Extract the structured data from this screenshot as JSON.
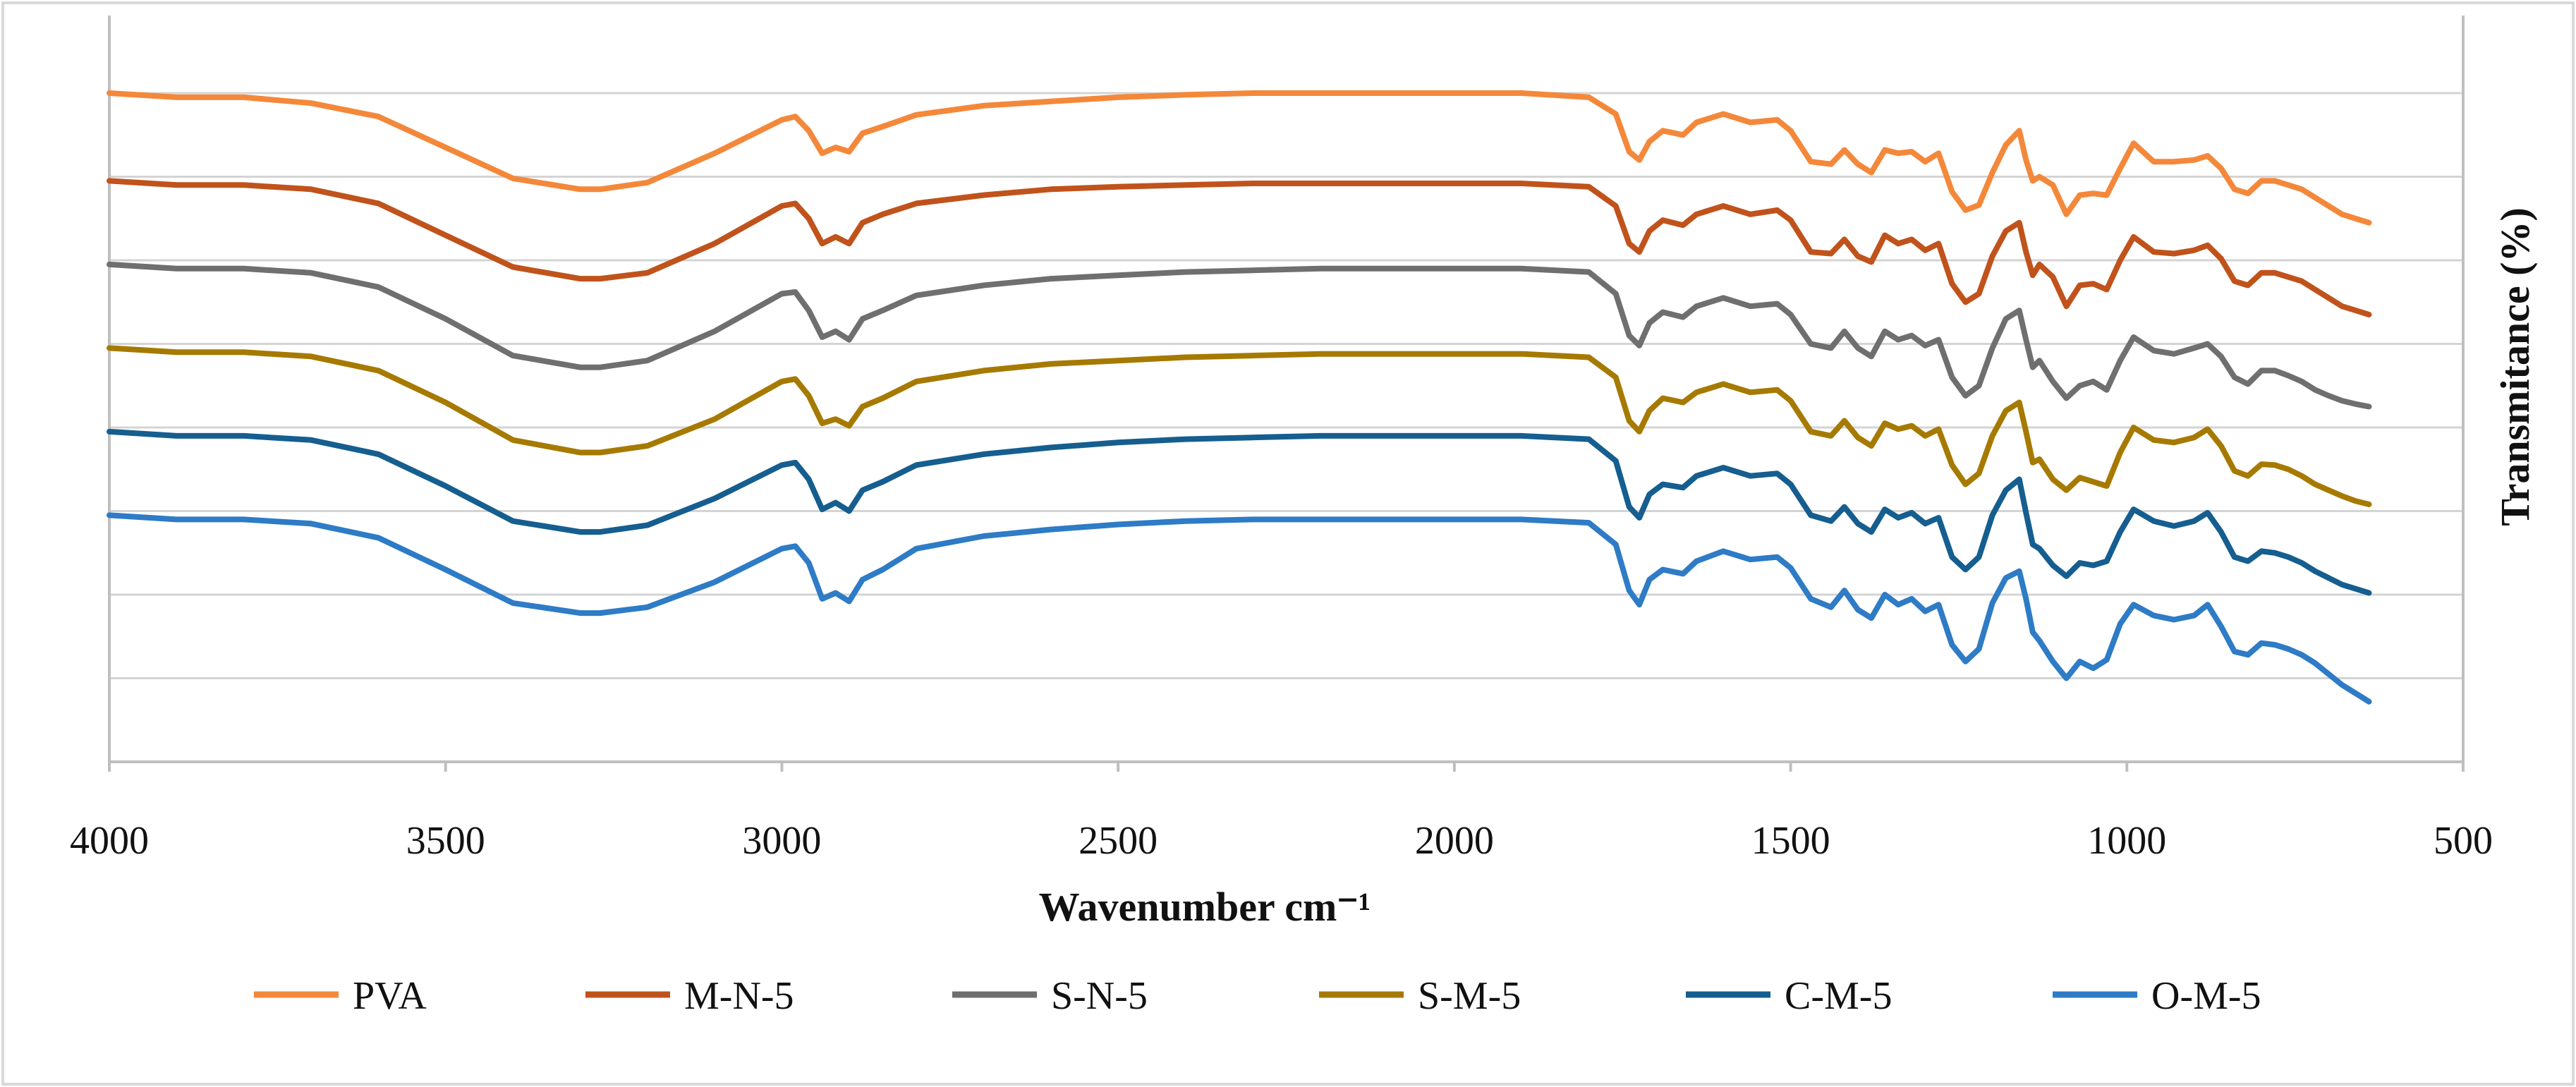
{
  "chart_data": {
    "type": "line",
    "title": "",
    "xlabel": "Wavenumber cm⁻¹",
    "ylabel": "Transmitance (%)",
    "xlim": [
      4000,
      500
    ],
    "x_reversed": true,
    "x_ticks": [
      4000,
      3500,
      3000,
      2500,
      2000,
      1500,
      1000,
      500
    ],
    "x_tick_labels": [
      "4000",
      "3500",
      "3000",
      "2500",
      "2000",
      "1500",
      "1000",
      "500"
    ],
    "ylim": [
      0,
      8
    ],
    "y_gridlines": [
      1,
      2,
      3,
      4,
      5,
      6,
      7,
      8
    ],
    "y_tick_labels_shown": false,
    "grid": true,
    "legend_position": "bottom",
    "x_common": [
      4000,
      3900,
      3800,
      3700,
      3600,
      3500,
      3400,
      3300,
      3270,
      3200,
      3100,
      3000,
      2980,
      2960,
      2940,
      2920,
      2900,
      2880,
      2850,
      2800,
      2700,
      2600,
      2500,
      2400,
      2300,
      2200,
      2100,
      2000,
      1900,
      1800,
      1760,
      1740,
      1725,
      1710,
      1690,
      1660,
      1640,
      1600,
      1560,
      1520,
      1500,
      1470,
      1440,
      1420,
      1400,
      1380,
      1360,
      1340,
      1320,
      1300,
      1280,
      1260,
      1240,
      1220,
      1200,
      1180,
      1160,
      1150,
      1140,
      1130,
      1110,
      1090,
      1070,
      1050,
      1030,
      1010,
      990,
      960,
      930,
      900,
      880,
      860,
      840,
      820,
      800,
      780,
      760,
      740,
      720,
      700,
      680,
      660,
      640
    ],
    "series": [
      {
        "name": "PVA",
        "color": "#F4883A",
        "values": [
          8.0,
          7.95,
          7.95,
          7.88,
          7.72,
          7.35,
          6.98,
          6.85,
          6.85,
          6.93,
          7.28,
          7.68,
          7.72,
          7.55,
          7.28,
          7.35,
          7.3,
          7.52,
          7.6,
          7.74,
          7.85,
          7.9,
          7.95,
          7.98,
          8.0,
          8.0,
          8.0,
          8.0,
          8.0,
          7.95,
          7.75,
          7.3,
          7.2,
          7.42,
          7.55,
          7.5,
          7.65,
          7.75,
          7.65,
          7.68,
          7.55,
          7.18,
          7.15,
          7.32,
          7.15,
          7.05,
          7.32,
          7.28,
          7.3,
          7.18,
          7.28,
          6.82,
          6.6,
          6.66,
          7.05,
          7.38,
          7.55,
          7.2,
          6.95,
          7.0,
          6.9,
          6.55,
          6.78,
          6.8,
          6.78,
          7.1,
          7.4,
          7.18,
          7.18,
          7.2,
          7.25,
          7.1,
          6.85,
          6.8,
          6.95,
          6.95,
          6.9,
          6.85,
          6.75,
          6.65,
          6.55,
          6.5,
          6.45
        ]
      },
      {
        "name": "M-N-5",
        "color": "#C0531B",
        "values": [
          6.95,
          6.9,
          6.9,
          6.85,
          6.68,
          6.3,
          5.92,
          5.78,
          5.78,
          5.85,
          6.2,
          6.65,
          6.68,
          6.5,
          6.2,
          6.28,
          6.2,
          6.45,
          6.55,
          6.68,
          6.78,
          6.85,
          6.88,
          6.9,
          6.92,
          6.92,
          6.92,
          6.92,
          6.92,
          6.88,
          6.65,
          6.2,
          6.1,
          6.35,
          6.48,
          6.42,
          6.55,
          6.65,
          6.55,
          6.6,
          6.48,
          6.1,
          6.08,
          6.25,
          6.05,
          5.98,
          6.3,
          6.2,
          6.25,
          6.12,
          6.2,
          5.72,
          5.5,
          5.6,
          6.05,
          6.35,
          6.45,
          6.1,
          5.82,
          5.95,
          5.8,
          5.45,
          5.7,
          5.72,
          5.65,
          6.0,
          6.28,
          6.1,
          6.08,
          6.12,
          6.18,
          6.02,
          5.75,
          5.7,
          5.85,
          5.85,
          5.8,
          5.75,
          5.65,
          5.55,
          5.45,
          5.4,
          5.35
        ]
      },
      {
        "name": "S-N-5",
        "color": "#6F6F6F",
        "values": [
          5.95,
          5.9,
          5.9,
          5.85,
          5.68,
          5.3,
          4.86,
          4.72,
          4.72,
          4.8,
          5.15,
          5.6,
          5.62,
          5.4,
          5.08,
          5.15,
          5.05,
          5.3,
          5.4,
          5.58,
          5.7,
          5.78,
          5.82,
          5.86,
          5.88,
          5.9,
          5.9,
          5.9,
          5.9,
          5.86,
          5.6,
          5.1,
          4.98,
          5.25,
          5.38,
          5.32,
          5.45,
          5.55,
          5.45,
          5.48,
          5.35,
          5.0,
          4.95,
          5.15,
          4.95,
          4.85,
          5.15,
          5.05,
          5.1,
          4.98,
          5.05,
          4.6,
          4.38,
          4.5,
          4.95,
          5.3,
          5.4,
          5.05,
          4.72,
          4.8,
          4.55,
          4.35,
          4.5,
          4.55,
          4.45,
          4.8,
          5.08,
          4.92,
          4.88,
          4.95,
          5.0,
          4.85,
          4.6,
          4.52,
          4.68,
          4.68,
          4.62,
          4.55,
          4.45,
          4.38,
          4.32,
          4.28,
          4.25
        ]
      },
      {
        "name": "S-M-5",
        "color": "#A67A00",
        "values": [
          4.95,
          4.9,
          4.9,
          4.85,
          4.68,
          4.3,
          3.85,
          3.7,
          3.7,
          3.78,
          4.1,
          4.55,
          4.58,
          4.38,
          4.05,
          4.1,
          4.02,
          4.25,
          4.35,
          4.55,
          4.68,
          4.76,
          4.8,
          4.84,
          4.86,
          4.88,
          4.88,
          4.88,
          4.88,
          4.84,
          4.6,
          4.08,
          3.95,
          4.2,
          4.35,
          4.3,
          4.42,
          4.52,
          4.42,
          4.45,
          4.32,
          3.95,
          3.9,
          4.08,
          3.88,
          3.78,
          4.05,
          3.98,
          4.02,
          3.9,
          3.98,
          3.55,
          3.32,
          3.45,
          3.9,
          4.2,
          4.3,
          3.95,
          3.58,
          3.62,
          3.38,
          3.25,
          3.4,
          3.35,
          3.3,
          3.7,
          4.0,
          3.85,
          3.82,
          3.88,
          3.98,
          3.78,
          3.48,
          3.42,
          3.56,
          3.55,
          3.5,
          3.42,
          3.32,
          3.25,
          3.18,
          3.12,
          3.08
        ]
      },
      {
        "name": "C-M-5",
        "color": "#155E8F",
        "values": [
          3.95,
          3.9,
          3.9,
          3.85,
          3.68,
          3.3,
          2.88,
          2.75,
          2.75,
          2.83,
          3.15,
          3.55,
          3.58,
          3.38,
          3.02,
          3.1,
          3.0,
          3.25,
          3.35,
          3.55,
          3.68,
          3.76,
          3.82,
          3.86,
          3.88,
          3.9,
          3.9,
          3.9,
          3.9,
          3.86,
          3.6,
          3.05,
          2.92,
          3.2,
          3.32,
          3.28,
          3.42,
          3.52,
          3.42,
          3.45,
          3.32,
          2.95,
          2.88,
          3.05,
          2.85,
          2.75,
          3.02,
          2.92,
          2.98,
          2.85,
          2.92,
          2.45,
          2.3,
          2.45,
          2.95,
          3.25,
          3.38,
          2.98,
          2.6,
          2.55,
          2.35,
          2.22,
          2.38,
          2.35,
          2.4,
          2.75,
          3.02,
          2.88,
          2.82,
          2.88,
          2.98,
          2.75,
          2.45,
          2.4,
          2.52,
          2.5,
          2.45,
          2.38,
          2.28,
          2.2,
          2.12,
          2.07,
          2.02
        ]
      },
      {
        "name": "O-M-5",
        "color": "#2E7BC6",
        "values": [
          2.95,
          2.9,
          2.9,
          2.85,
          2.68,
          2.3,
          1.9,
          1.78,
          1.78,
          1.85,
          2.15,
          2.55,
          2.58,
          2.38,
          1.95,
          2.02,
          1.92,
          2.18,
          2.3,
          2.55,
          2.7,
          2.78,
          2.84,
          2.88,
          2.9,
          2.9,
          2.9,
          2.9,
          2.9,
          2.86,
          2.6,
          2.05,
          1.88,
          2.18,
          2.3,
          2.25,
          2.4,
          2.52,
          2.42,
          2.45,
          2.32,
          1.95,
          1.85,
          2.05,
          1.82,
          1.72,
          2.0,
          1.88,
          1.95,
          1.8,
          1.88,
          1.4,
          1.2,
          1.35,
          1.9,
          2.2,
          2.28,
          1.95,
          1.55,
          1.45,
          1.2,
          1.0,
          1.2,
          1.12,
          1.22,
          1.65,
          1.88,
          1.75,
          1.7,
          1.75,
          1.88,
          1.62,
          1.32,
          1.28,
          1.42,
          1.4,
          1.35,
          1.28,
          1.18,
          1.05,
          0.92,
          0.82,
          0.72
        ]
      }
    ]
  }
}
